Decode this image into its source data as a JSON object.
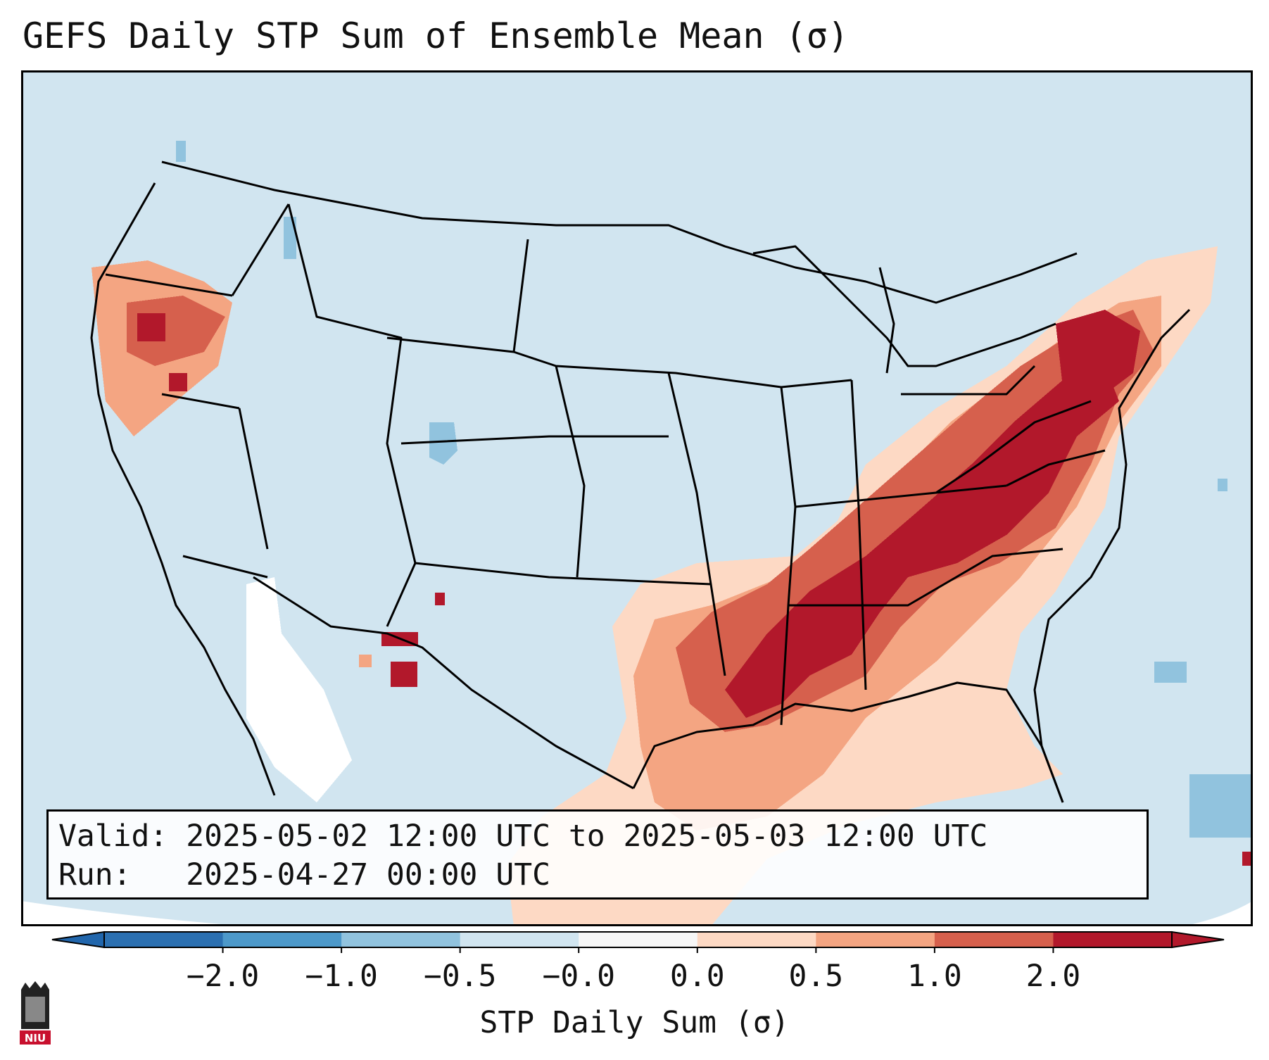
{
  "title": "GEFS Daily STP Sum of Ensemble Mean (σ)",
  "info": {
    "valid_label": "Valid:",
    "valid_value": "2025-05-02 12:00 UTC to 2025-05-03 12:00 UTC",
    "run_label": "Run:",
    "run_value": "2025-04-27 00:00 UTC"
  },
  "colorbar": {
    "label": "STP Daily Sum (σ)",
    "ticks": [
      "−2.0",
      "−1.0",
      "−0.5",
      "−0.0",
      "0.0",
      "0.5",
      "1.0",
      "2.0"
    ],
    "bins": [
      {
        "color": "#2c70b1"
      },
      {
        "color": "#4d99ca"
      },
      {
        "color": "#91c3de"
      },
      {
        "color": "#d1e5f0"
      },
      {
        "color": "#f7f7f7"
      },
      {
        "color": "#fdd9c4"
      },
      {
        "color": "#f4a582"
      },
      {
        "color": "#d6604d"
      },
      {
        "color": "#b2182b"
      }
    ],
    "under_color": "#2166ac",
    "over_color": "#b2182b"
  },
  "map": {
    "background_color": "#d1e5f0",
    "outside_color": "#ffffff",
    "coast_color": "#000000",
    "anomaly_regions": [
      {
        "name": "southeast-severe-core",
        "level": "2.0",
        "color": "#b2182b"
      },
      {
        "name": "ohio-valley-high",
        "level": "1.0",
        "color": "#d6604d"
      },
      {
        "name": "gulf-coast-moderate",
        "level": "0.5",
        "color": "#f4a582"
      },
      {
        "name": "texas-light",
        "level": "0.0",
        "color": "#fdd9c4"
      },
      {
        "name": "oregon-spot",
        "level": "1.0",
        "color": "#d6604d"
      },
      {
        "name": "new-mexico-spot",
        "level": "2.0",
        "color": "#b2182b"
      },
      {
        "name": "colorado-negative",
        "level": "-0.5",
        "color": "#91c3de"
      },
      {
        "name": "atlantic-negative",
        "level": "-0.5",
        "color": "#91c3de"
      }
    ]
  },
  "logo": {
    "text": "NIU",
    "color": "#c8102e"
  }
}
